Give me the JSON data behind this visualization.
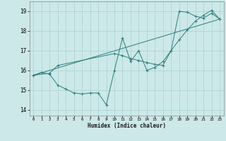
{
  "xlabel": "Humidex (Indice chaleur)",
  "xlim": [
    -0.5,
    23.5
  ],
  "ylim": [
    13.7,
    19.5
  ],
  "yticks": [
    14,
    15,
    16,
    17,
    18,
    19
  ],
  "xticks": [
    0,
    1,
    2,
    3,
    4,
    5,
    6,
    7,
    8,
    9,
    10,
    11,
    12,
    13,
    14,
    15,
    16,
    17,
    18,
    19,
    20,
    21,
    22,
    23
  ],
  "bg_color": "#cce8e8",
  "line_color": "#2e7d7d",
  "grid_color": "#b0d4d4",
  "line1_x": [
    0,
    1,
    2,
    3,
    4,
    5,
    6,
    7,
    8,
    9,
    10,
    11,
    12,
    13,
    14,
    15,
    16,
    17,
    18,
    19,
    20,
    21,
    22,
    23
  ],
  "line1_y": [
    15.75,
    15.9,
    15.8,
    15.25,
    15.05,
    14.85,
    14.8,
    14.85,
    14.85,
    14.25,
    16.0,
    17.65,
    16.45,
    17.0,
    16.0,
    16.15,
    16.45,
    17.0,
    19.0,
    18.95,
    18.75,
    18.65,
    18.9,
    18.6
  ],
  "line2_x": [
    0,
    2,
    3,
    10,
    11,
    12,
    13,
    14,
    15,
    16,
    17,
    18,
    19,
    20,
    21,
    22,
    23
  ],
  "line2_y": [
    15.75,
    15.85,
    16.25,
    16.85,
    16.75,
    16.6,
    16.5,
    16.4,
    16.3,
    16.25,
    17.0,
    17.55,
    18.05,
    18.5,
    18.8,
    19.05,
    18.6
  ],
  "line3_x": [
    0,
    23
  ],
  "line3_y": [
    15.75,
    18.6
  ]
}
